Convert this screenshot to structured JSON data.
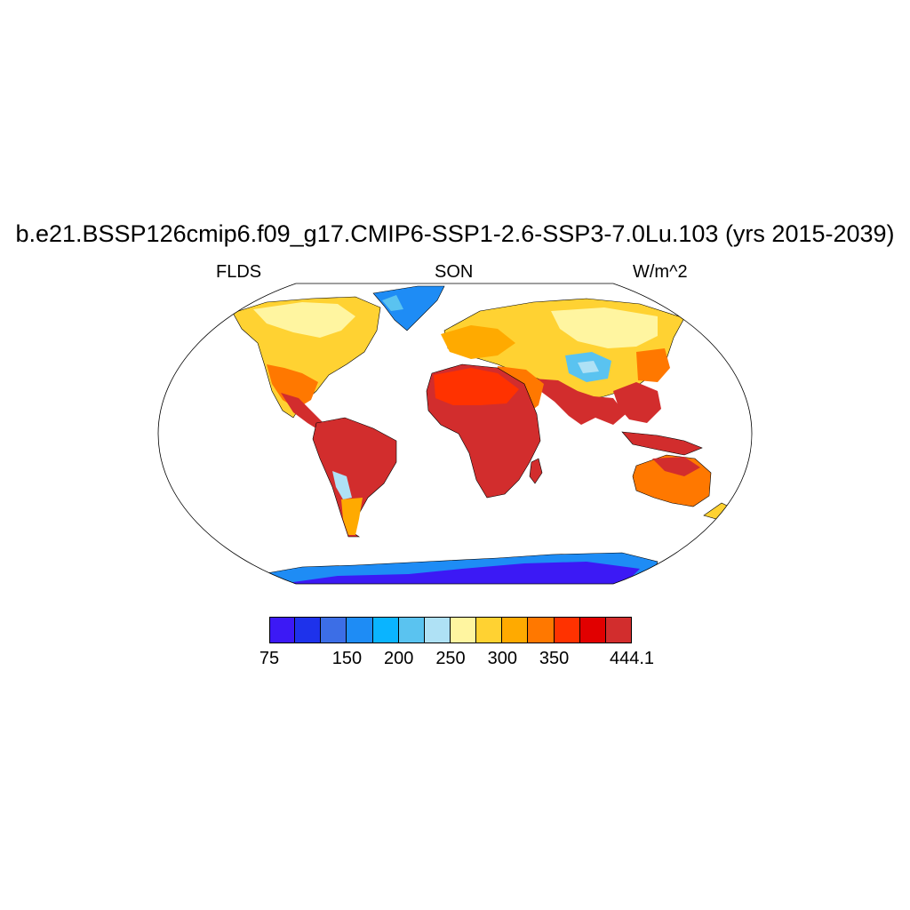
{
  "title": "b.e21.BSSP126cmip6.f09_g17.CMIP6-SSP1-2.6-SSP3-7.0Lu.103 (yrs 2015-2039)",
  "variable": "FLDS",
  "season": "SON",
  "units": "W/m^2",
  "colorbar": {
    "colors": [
      "#3c19f5",
      "#1e32eb",
      "#3c6ee6",
      "#1e8cf5",
      "#0ab4ff",
      "#5ac3f0",
      "#afe1f5",
      "#fff5a0",
      "#ffd232",
      "#ffaa00",
      "#ff7800",
      "#ff3200",
      "#e10000",
      "#d22d2d"
    ],
    "labels": [
      {
        "text": "75",
        "index": 0
      },
      {
        "text": "150",
        "index": 3
      },
      {
        "text": "200",
        "index": 5
      },
      {
        "text": "250",
        "index": 7
      },
      {
        "text": "300",
        "index": 9
      },
      {
        "text": "350",
        "index": 11
      },
      {
        "text": "444.1",
        "index": 14
      }
    ]
  }
}
